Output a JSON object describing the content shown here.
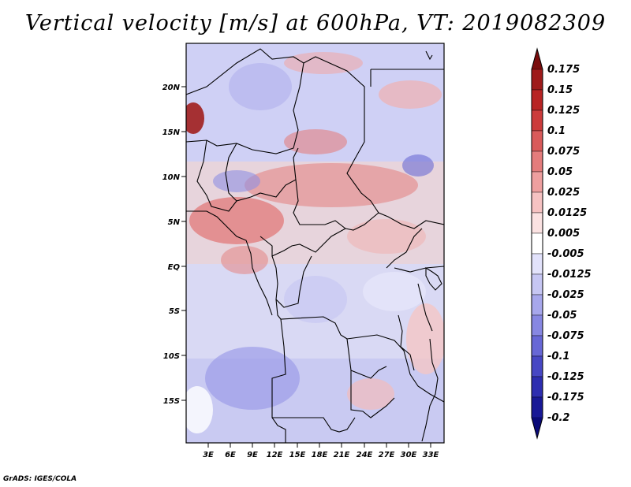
{
  "title": "Vertical velocity [m/s] at 600hPa, VT: 2019082309",
  "credit": "GrADS: IGES/COLA",
  "map": {
    "lat_labels": [
      "20N",
      "15N",
      "10N",
      "5N",
      "EQ",
      "5S",
      "10S",
      "15S"
    ],
    "lon_labels": [
      "3E",
      "6E",
      "9E",
      "12E",
      "15E",
      "18E",
      "21E",
      "24E",
      "27E",
      "30E",
      "33E"
    ]
  },
  "colorbar": {
    "labels": [
      "0.175",
      "0.15",
      "0.125",
      "0.1",
      "0.075",
      "0.05",
      "0.025",
      "0.0125",
      "0.005",
      "-0.005",
      "-0.0125",
      "-0.025",
      "-0.05",
      "-0.075",
      "-0.1",
      "-0.125",
      "-0.175",
      "-0.2"
    ],
    "colors": [
      "#7a0d0d",
      "#9e1a1a",
      "#b82424",
      "#cc3b3b",
      "#d95a5a",
      "#e47c7c",
      "#ee9f9f",
      "#f6c2c2",
      "#fbe2e2",
      "#ffffff",
      "#e2e2fb",
      "#c6c6f3",
      "#a7a7ec",
      "#8787e2",
      "#6767d6",
      "#4747c4",
      "#2d2db0",
      "#181896",
      "#0a0a78"
    ]
  }
}
